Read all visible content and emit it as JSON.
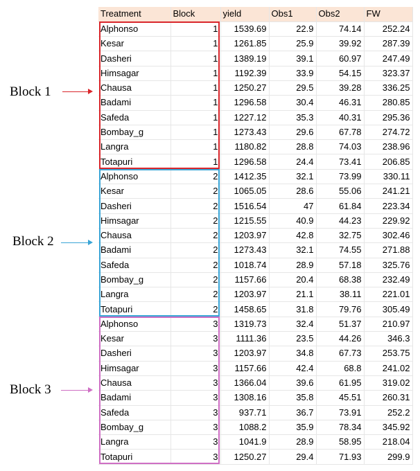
{
  "headers": [
    "Treatment",
    "Block",
    "yield",
    "Obs1",
    "Obs2",
    "FW"
  ],
  "rows": [
    [
      "Alphonso",
      "1",
      "1539.69",
      "22.9",
      "74.14",
      "252.24"
    ],
    [
      "Kesar",
      "1",
      "1261.85",
      "25.9",
      "39.92",
      "287.39"
    ],
    [
      "Dasheri",
      "1",
      "1389.19",
      "39.1",
      "60.97",
      "247.49"
    ],
    [
      "Himsagar",
      "1",
      "1192.39",
      "33.9",
      "54.15",
      "323.37"
    ],
    [
      "Chausa",
      "1",
      "1250.27",
      "29.5",
      "39.28",
      "336.25"
    ],
    [
      "Badami",
      "1",
      "1296.58",
      "30.4",
      "46.31",
      "280.85"
    ],
    [
      "Safeda",
      "1",
      "1227.12",
      "35.3",
      "40.31",
      "295.36"
    ],
    [
      "Bombay_g",
      "1",
      "1273.43",
      "29.6",
      "67.78",
      "274.72"
    ],
    [
      "Langra",
      "1",
      "1180.82",
      "28.8",
      "74.03",
      "238.96"
    ],
    [
      "Totapuri",
      "1",
      "1296.58",
      "24.4",
      "73.41",
      "206.85"
    ],
    [
      "Alphonso",
      "2",
      "1412.35",
      "32.1",
      "73.99",
      "330.11"
    ],
    [
      "Kesar",
      "2",
      "1065.05",
      "28.6",
      "55.06",
      "241.21"
    ],
    [
      "Dasheri",
      "2",
      "1516.54",
      "47",
      "61.84",
      "223.34"
    ],
    [
      "Himsagar",
      "2",
      "1215.55",
      "40.9",
      "44.23",
      "229.92"
    ],
    [
      "Chausa",
      "2",
      "1203.97",
      "42.8",
      "32.75",
      "302.46"
    ],
    [
      "Badami",
      "2",
      "1273.43",
      "32.1",
      "74.55",
      "271.88"
    ],
    [
      "Safeda",
      "2",
      "1018.74",
      "28.9",
      "57.18",
      "325.76"
    ],
    [
      "Bombay_g",
      "2",
      "1157.66",
      "20.4",
      "68.38",
      "232.49"
    ],
    [
      "Langra",
      "2",
      "1203.97",
      "21.1",
      "38.11",
      "221.01"
    ],
    [
      "Totapuri",
      "2",
      "1458.65",
      "31.8",
      "79.76",
      "305.49"
    ],
    [
      "Alphonso",
      "3",
      "1319.73",
      "32.4",
      "51.37",
      "210.97"
    ],
    [
      "Kesar",
      "3",
      "1111.36",
      "23.5",
      "44.26",
      "346.3"
    ],
    [
      "Dasheri",
      "3",
      "1203.97",
      "34.8",
      "67.73",
      "253.75"
    ],
    [
      "Himsagar",
      "3",
      "1157.66",
      "42.4",
      "68.8",
      "241.02"
    ],
    [
      "Chausa",
      "3",
      "1366.04",
      "39.6",
      "61.95",
      "319.02"
    ],
    [
      "Badami",
      "3",
      "1308.16",
      "35.8",
      "45.51",
      "260.31"
    ],
    [
      "Safeda",
      "3",
      "937.71",
      "36.7",
      "73.91",
      "252.2"
    ],
    [
      "Bombay_g",
      "3",
      "1088.2",
      "35.9",
      "78.34",
      "345.92"
    ],
    [
      "Langra",
      "3",
      "1041.9",
      "28.9",
      "58.95",
      "218.04"
    ],
    [
      "Totapuri",
      "3",
      "1250.27",
      "29.4",
      "71.93",
      "299.9"
    ]
  ],
  "annotations": {
    "block1": {
      "label": "Block 1",
      "color": "#d9262b"
    },
    "block2": {
      "label": "Block 2",
      "color": "#3aa5d6"
    },
    "block3": {
      "label": "Block 3",
      "color": "#cf6fc4"
    }
  },
  "header_bg": "#fbe5d6"
}
